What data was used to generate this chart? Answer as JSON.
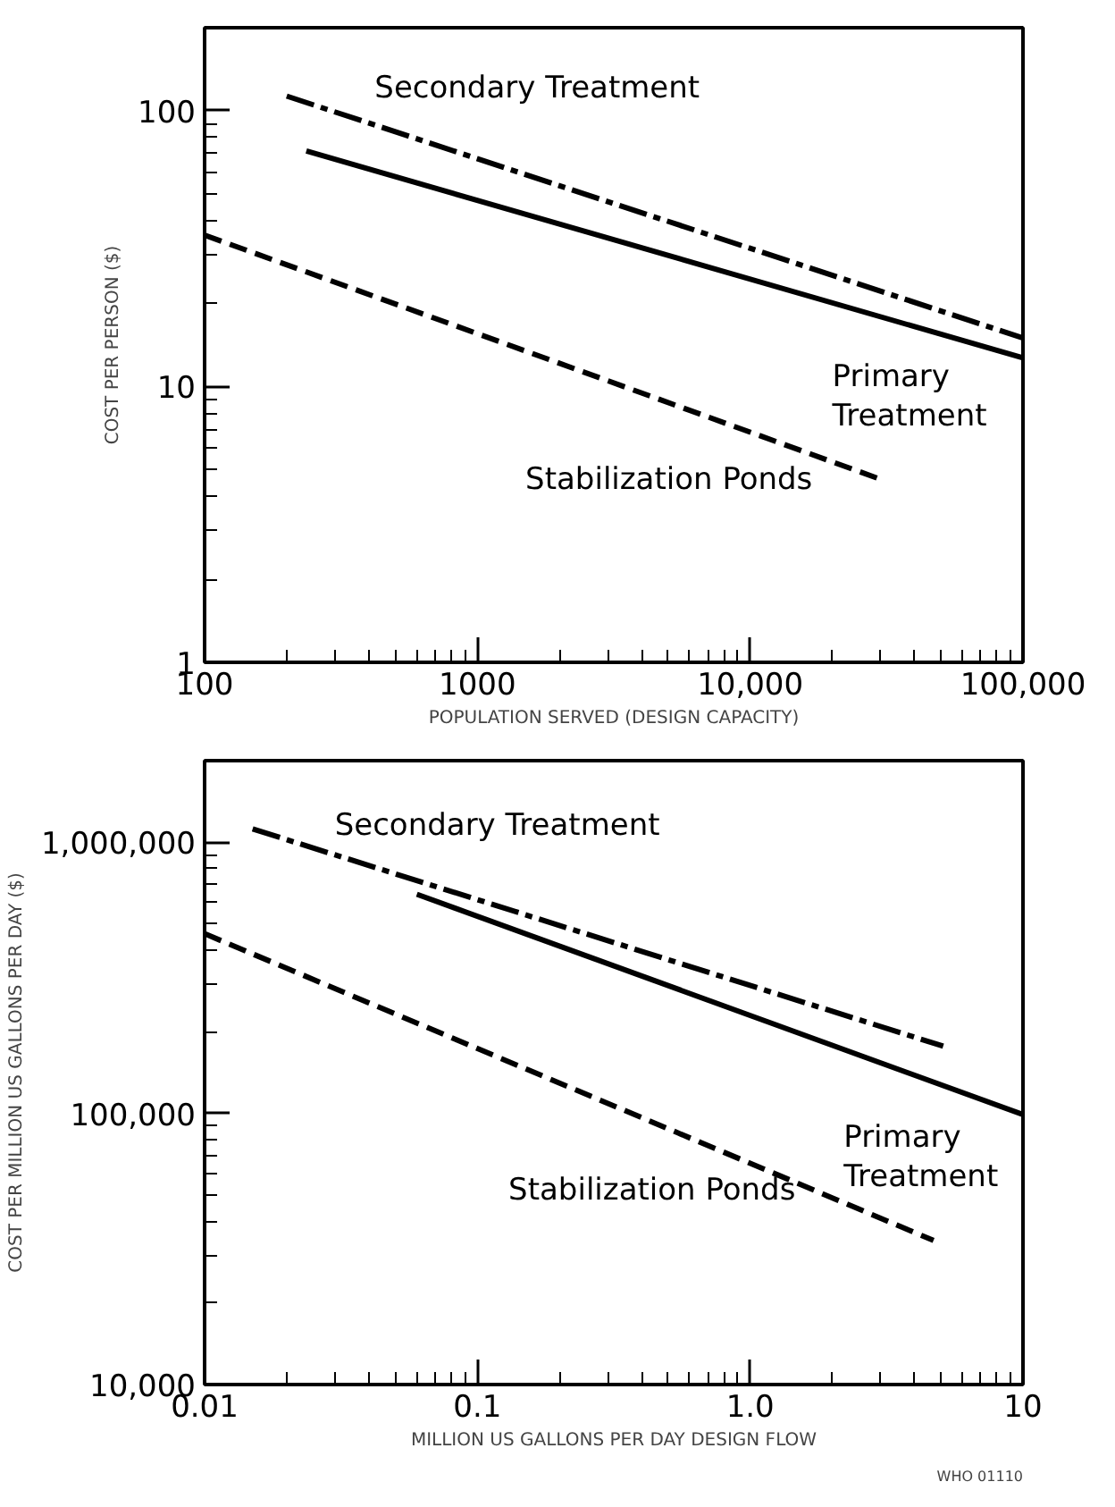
{
  "chart_data": [
    {
      "type": "line",
      "xlabel": "POPULATION SERVED (DESIGN CAPACITY)",
      "ylabel": "COST PER PERSON ($)",
      "log": "xy",
      "grid": false,
      "legend": false,
      "marker": "none",
      "xlim": [
        100,
        100000
      ],
      "ylim": [
        1,
        200
      ],
      "xticks": [
        100,
        1000,
        {
          "value": 10000,
          "label": "10,000"
        },
        {
          "value": 100000,
          "label": "100,000"
        }
      ],
      "yticks": [
        1,
        10,
        100
      ],
      "series": [
        {
          "name": "Secondary Treatment",
          "color": "#000000",
          "line_style": "dashdot",
          "x": [
            200,
            100000
          ],
          "values": [
            113,
            15
          ]
        },
        {
          "name": "Primary Treatment",
          "color": "#000000",
          "line_style": "solid",
          "x": [
            236,
            100000
          ],
          "values": [
            71.5,
            12.7
          ]
        },
        {
          "name": "Stabilization Ponds",
          "color": "#000000",
          "line_style": "dashed",
          "x": [
            100,
            31000
          ],
          "values": [
            35.4,
            4.56
          ]
        }
      ]
    },
    {
      "type": "line",
      "xlabel": "MILLION US GALLONS PER DAY DESIGN FLOW",
      "ylabel": "COST PER MILLION US GALLONS PER DAY ($)",
      "log": "xy",
      "grid": false,
      "legend": false,
      "marker": "none",
      "xlim": [
        0.01,
        10
      ],
      "ylim": [
        10000,
        2000000
      ],
      "xticks": [
        0.01,
        0.1,
        {
          "value": 1,
          "label": "1.0"
        },
        10
      ],
      "yticks": [
        {
          "value": 10000,
          "label": "10,000"
        },
        {
          "value": 100000,
          "label": "100,000"
        },
        {
          "value": 1000000,
          "label": "1,000,000"
        }
      ],
      "annotations": [
        "WHO 01110"
      ],
      "series": [
        {
          "name": "Secondary Treatment",
          "color": "#000000",
          "line_style": "dashdot",
          "x": [
            0.015,
            5.1
          ],
          "values": [
            1120000,
            177000
          ]
        },
        {
          "name": "Primary Treatment",
          "color": "#000000",
          "line_style": "solid",
          "x": [
            0.06,
            10
          ],
          "values": [
            643000,
            99000
          ]
        },
        {
          "name": "Stabilization Ponds",
          "color": "#000000",
          "line_style": "dashed",
          "x": [
            0.01,
            4.7
          ],
          "values": [
            460000,
            34000
          ]
        }
      ]
    }
  ]
}
